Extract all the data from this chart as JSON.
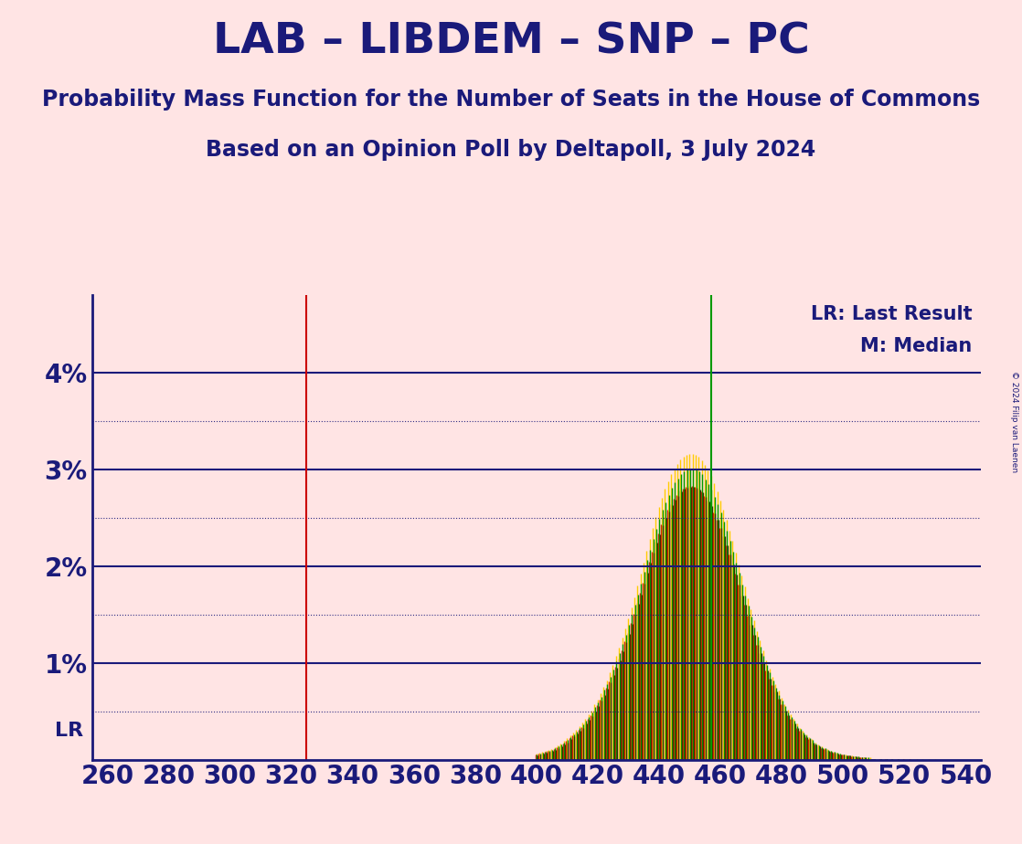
{
  "title": "LAB – LIBDEM – SNP – PC",
  "subtitle1": "Probability Mass Function for the Number of Seats in the House of Commons",
  "subtitle2": "Based on an Opinion Poll by Deltapoll, 3 July 2024",
  "copyright": "© 2024 Filip van Laenen",
  "background_color": "#FFE4E4",
  "text_color": "#1a1a7a",
  "lr_line_x": 325,
  "lr_line_color": "#cc0000",
  "median_line_x": 457,
  "median_line_color": "#009900",
  "lr_label": "LR: Last Result",
  "median_label": "M: Median",
  "lr_y_label": "LR",
  "ylim": [
    0,
    0.048
  ],
  "yticks": [
    0.0,
    0.01,
    0.02,
    0.03,
    0.04
  ],
  "ytick_labels": [
    "",
    "1%",
    "2%",
    "3%",
    "4%"
  ],
  "dotted_lines": [
    0.005,
    0.015,
    0.025,
    0.035
  ],
  "solid_lines": [
    0.01,
    0.02,
    0.03,
    0.04
  ],
  "xlim": [
    255,
    545
  ],
  "xticks": [
    260,
    280,
    300,
    320,
    340,
    360,
    380,
    400,
    420,
    440,
    460,
    480,
    500,
    520,
    540
  ],
  "party_colors": [
    "#cc0000",
    "#ffcc00",
    "#009900",
    "#333300"
  ],
  "pmf_data": {
    "400": [
      0.0005,
      0.0006,
      0.0005,
      0.0004
    ],
    "401": [
      0.0006,
      0.0007,
      0.0006,
      0.0005
    ],
    "402": [
      0.0007,
      0.0008,
      0.0007,
      0.0006
    ],
    "403": [
      0.0008,
      0.0009,
      0.0008,
      0.0007
    ],
    "404": [
      0.0009,
      0.001,
      0.0009,
      0.0008
    ],
    "405": [
      0.001,
      0.0011,
      0.001,
      0.0009
    ],
    "406": [
      0.0011,
      0.0013,
      0.0012,
      0.001
    ],
    "407": [
      0.0013,
      0.0015,
      0.0014,
      0.0012
    ],
    "408": [
      0.0015,
      0.0017,
      0.0016,
      0.0014
    ],
    "409": [
      0.0017,
      0.0019,
      0.0018,
      0.0016
    ],
    "410": [
      0.0019,
      0.0022,
      0.002,
      0.0018
    ],
    "411": [
      0.0022,
      0.0025,
      0.0023,
      0.0021
    ],
    "412": [
      0.0025,
      0.0028,
      0.0026,
      0.0024
    ],
    "413": [
      0.0028,
      0.0031,
      0.0029,
      0.0027
    ],
    "414": [
      0.0031,
      0.0035,
      0.0033,
      0.003
    ],
    "415": [
      0.0034,
      0.0038,
      0.0036,
      0.0033
    ],
    "416": [
      0.0038,
      0.0042,
      0.004,
      0.0037
    ],
    "417": [
      0.0042,
      0.0047,
      0.0044,
      0.0041
    ],
    "418": [
      0.0046,
      0.0051,
      0.0049,
      0.0045
    ],
    "419": [
      0.0051,
      0.0057,
      0.0054,
      0.005
    ],
    "420": [
      0.0056,
      0.0062,
      0.0059,
      0.0055
    ],
    "421": [
      0.0062,
      0.0069,
      0.0065,
      0.0061
    ],
    "422": [
      0.0068,
      0.0075,
      0.0072,
      0.0067
    ],
    "423": [
      0.0074,
      0.0082,
      0.0078,
      0.0073
    ],
    "424": [
      0.0081,
      0.009,
      0.0086,
      0.008
    ],
    "425": [
      0.0088,
      0.0098,
      0.0093,
      0.0087
    ],
    "426": [
      0.0096,
      0.0107,
      0.0102,
      0.0095
    ],
    "427": [
      0.0104,
      0.0116,
      0.011,
      0.0103
    ],
    "428": [
      0.0113,
      0.0126,
      0.012,
      0.0112
    ],
    "429": [
      0.0122,
      0.0136,
      0.0129,
      0.0121
    ],
    "430": [
      0.0131,
      0.0146,
      0.0139,
      0.013
    ],
    "431": [
      0.0141,
      0.0157,
      0.015,
      0.014
    ],
    "432": [
      0.0151,
      0.0168,
      0.016,
      0.015
    ],
    "433": [
      0.0162,
      0.018,
      0.0171,
      0.0161
    ],
    "434": [
      0.0172,
      0.0192,
      0.0182,
      0.0171
    ],
    "435": [
      0.0183,
      0.0204,
      0.0194,
      0.0182
    ],
    "436": [
      0.0194,
      0.0216,
      0.0206,
      0.0193
    ],
    "437": [
      0.0205,
      0.0228,
      0.0217,
      0.0204
    ],
    "438": [
      0.0215,
      0.024,
      0.0228,
      0.0214
    ],
    "439": [
      0.0225,
      0.0251,
      0.0239,
      0.0224
    ],
    "440": [
      0.0234,
      0.0261,
      0.0249,
      0.0233
    ],
    "441": [
      0.0243,
      0.0271,
      0.0258,
      0.0242
    ],
    "442": [
      0.0251,
      0.028,
      0.0266,
      0.025
    ],
    "443": [
      0.0258,
      0.0288,
      0.0274,
      0.0257
    ],
    "444": [
      0.0264,
      0.0295,
      0.0281,
      0.0263
    ],
    "445": [
      0.027,
      0.0301,
      0.0287,
      0.0269
    ],
    "446": [
      0.0274,
      0.0306,
      0.0291,
      0.0273
    ],
    "447": [
      0.0278,
      0.031,
      0.0295,
      0.0277
    ],
    "448": [
      0.028,
      0.0313,
      0.0298,
      0.028
    ],
    "449": [
      0.0282,
      0.0315,
      0.03,
      0.0281
    ],
    "450": [
      0.0283,
      0.0316,
      0.0301,
      0.0282
    ],
    "451": [
      0.0283,
      0.0316,
      0.0301,
      0.0282
    ],
    "452": [
      0.0282,
      0.0315,
      0.03,
      0.0281
    ],
    "453": [
      0.028,
      0.0313,
      0.0298,
      0.0279
    ],
    "454": [
      0.0277,
      0.0309,
      0.0295,
      0.0276
    ],
    "455": [
      0.0273,
      0.0305,
      0.029,
      0.0272
    ],
    "456": [
      0.0268,
      0.0299,
      0.0285,
      0.0267
    ],
    "457": [
      0.0262,
      0.0293,
      0.0279,
      0.0262
    ],
    "458": [
      0.0256,
      0.0286,
      0.0272,
      0.0255
    ],
    "459": [
      0.0248,
      0.0277,
      0.0264,
      0.0248
    ],
    "460": [
      0.024,
      0.0268,
      0.0256,
      0.024
    ],
    "461": [
      0.0231,
      0.0258,
      0.0246,
      0.0231
    ],
    "462": [
      0.0222,
      0.0248,
      0.0237,
      0.0222
    ],
    "463": [
      0.0212,
      0.0237,
      0.0226,
      0.0212
    ],
    "464": [
      0.0202,
      0.0226,
      0.0215,
      0.0202
    ],
    "465": [
      0.0192,
      0.0214,
      0.0204,
      0.0191
    ],
    "466": [
      0.0181,
      0.0202,
      0.0193,
      0.0181
    ],
    "467": [
      0.017,
      0.019,
      0.0181,
      0.017
    ],
    "468": [
      0.016,
      0.0179,
      0.017,
      0.016
    ],
    "469": [
      0.0149,
      0.0167,
      0.0159,
      0.0149
    ],
    "470": [
      0.0139,
      0.0155,
      0.0148,
      0.0139
    ],
    "471": [
      0.0129,
      0.0144,
      0.0137,
      0.0129
    ],
    "472": [
      0.0119,
      0.0133,
      0.0127,
      0.0119
    ],
    "473": [
      0.011,
      0.0123,
      0.0117,
      0.011
    ],
    "474": [
      0.0101,
      0.0113,
      0.0107,
      0.0101
    ],
    "475": [
      0.0092,
      0.0103,
      0.0098,
      0.0092
    ],
    "476": [
      0.0084,
      0.0094,
      0.009,
      0.0084
    ],
    "477": [
      0.0077,
      0.0086,
      0.0082,
      0.0077
    ],
    "478": [
      0.007,
      0.0078,
      0.0074,
      0.007
    ],
    "479": [
      0.0063,
      0.0071,
      0.0067,
      0.0063
    ],
    "480": [
      0.0057,
      0.0064,
      0.0061,
      0.0057
    ],
    "481": [
      0.0051,
      0.0057,
      0.0055,
      0.0051
    ],
    "482": [
      0.0046,
      0.0052,
      0.0049,
      0.0046
    ],
    "483": [
      0.0042,
      0.0047,
      0.0044,
      0.0042
    ],
    "484": [
      0.0037,
      0.0042,
      0.004,
      0.0037
    ],
    "485": [
      0.0033,
      0.0037,
      0.0035,
      0.0033
    ],
    "486": [
      0.003,
      0.0033,
      0.0032,
      0.003
    ],
    "487": [
      0.0026,
      0.003,
      0.0028,
      0.0026
    ],
    "488": [
      0.0023,
      0.0026,
      0.0025,
      0.0023
    ],
    "489": [
      0.0021,
      0.0023,
      0.0022,
      0.0021
    ],
    "490": [
      0.0018,
      0.0021,
      0.002,
      0.0018
    ],
    "491": [
      0.0016,
      0.0018,
      0.0017,
      0.0016
    ],
    "492": [
      0.0014,
      0.0016,
      0.0015,
      0.0014
    ],
    "493": [
      0.0012,
      0.0014,
      0.0013,
      0.0012
    ],
    "494": [
      0.0011,
      0.0012,
      0.0012,
      0.0011
    ],
    "495": [
      0.0009,
      0.0011,
      0.001,
      0.0009
    ],
    "496": [
      0.0008,
      0.0009,
      0.0009,
      0.0008
    ],
    "497": [
      0.0007,
      0.0008,
      0.0008,
      0.0007
    ],
    "498": [
      0.0006,
      0.0007,
      0.0007,
      0.0006
    ],
    "499": [
      0.0005,
      0.0006,
      0.0006,
      0.0005
    ],
    "500": [
      0.0005,
      0.0005,
      0.0005,
      0.0005
    ],
    "501": [
      0.0004,
      0.0005,
      0.0004,
      0.0004
    ],
    "502": [
      0.0004,
      0.0004,
      0.0004,
      0.0004
    ],
    "503": [
      0.0003,
      0.0004,
      0.0003,
      0.0003
    ],
    "504": [
      0.0003,
      0.0003,
      0.0003,
      0.0003
    ],
    "505": [
      0.0002,
      0.0003,
      0.0003,
      0.0002
    ],
    "506": [
      0.0002,
      0.0002,
      0.0002,
      0.0002
    ],
    "507": [
      0.0002,
      0.0002,
      0.0002,
      0.0002
    ],
    "508": [
      0.0001,
      0.0002,
      0.0002,
      0.0001
    ],
    "509": [
      0.0001,
      0.0002,
      0.0001,
      0.0001
    ],
    "510": [
      0.0001,
      0.0001,
      0.0001,
      0.0001
    ],
    "512": [
      0.0001,
      0.0001,
      0.0001,
      0.0001
    ],
    "514": [
      0.0001,
      0.0001,
      0.0001,
      0.0001
    ],
    "516": [
      0.0001,
      0.0001,
      0.0001,
      0.0
    ],
    "518": [
      0.0001,
      0.0001,
      0.0001,
      0.0
    ],
    "520": [
      0.0001,
      0.0001,
      0.0,
      0.0
    ],
    "522": [
      0.0001,
      0.0001,
      0.0,
      0.0
    ],
    "524": [
      0.0,
      0.0001,
      0.0,
      0.0
    ],
    "526": [
      0.0,
      0.0001,
      0.0,
      0.0
    ],
    "528": [
      0.0,
      0.0001,
      0.0,
      0.0
    ],
    "530": [
      0.0,
      0.0001,
      0.0,
      0.0
    ]
  }
}
